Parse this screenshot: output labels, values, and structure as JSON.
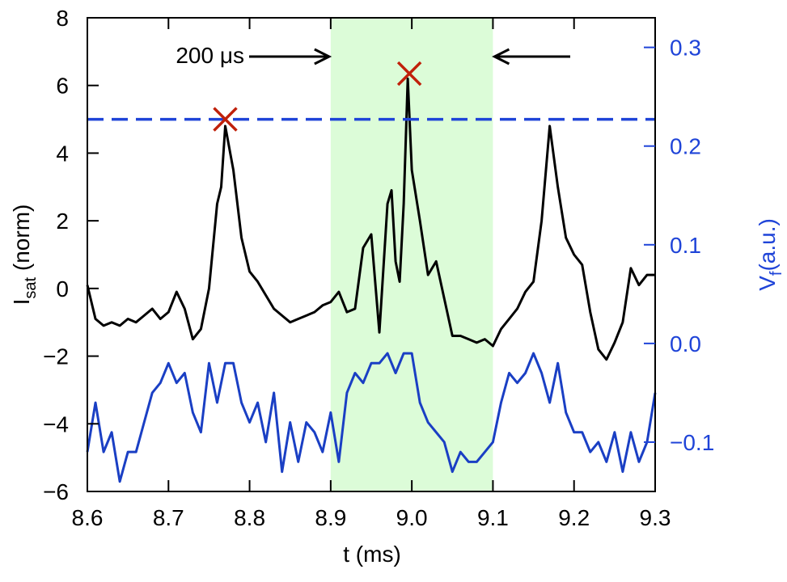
{
  "chart_data": {
    "type": "line",
    "xlabel": "t (ms)",
    "ylabel": [
      "I",
      "sat",
      " (norm)"
    ],
    "y2label": [
      "V",
      "f",
      "(a.u.)"
    ],
    "annotation": "200 μs",
    "xlim": [
      8.6,
      9.3
    ],
    "xticks": [
      8.6,
      8.7,
      8.8,
      8.9,
      {
        "value": 9.0,
        "label": "9.0"
      },
      9.1,
      9.2,
      9.3
    ],
    "ylim": [
      -6,
      8
    ],
    "yticks": [
      {
        "value": -6,
        "label": "−6"
      },
      {
        "value": -4,
        "label": "−4"
      },
      {
        "value": -2,
        "label": "−2"
      },
      0,
      2,
      4,
      6,
      8
    ],
    "y2lim": [
      -0.15,
      0.33
    ],
    "y2ticks": [
      {
        "value": -0.1,
        "label": "−0.1"
      },
      {
        "value": 0.0,
        "label": "0.0"
      },
      0.1,
      0.2,
      0.3
    ],
    "span": [
      8.9,
      9.1
    ],
    "span_color": "#dcfcd8",
    "threshold": 5,
    "threshold_color": "#1f44d8",
    "markers": {
      "x": [
        8.77,
        8.997
      ],
      "y": [
        5,
        6.35
      ],
      "color": "#c0200a"
    },
    "series": [
      {
        "color": "#000000",
        "x": [
          8.6,
          8.61,
          8.62,
          8.63,
          8.64,
          8.65,
          8.66,
          8.67,
          8.68,
          8.69,
          8.7,
          8.71,
          8.72,
          8.73,
          8.74,
          8.75,
          8.76,
          8.765,
          8.77,
          8.78,
          8.79,
          8.8,
          8.81,
          8.82,
          8.83,
          8.84,
          8.85,
          8.86,
          8.87,
          8.88,
          8.89,
          8.9,
          8.91,
          8.92,
          8.93,
          8.94,
          8.95,
          8.96,
          8.97,
          8.975,
          8.98,
          8.985,
          8.99,
          8.995,
          9.0,
          9.01,
          9.02,
          9.03,
          9.04,
          9.05,
          9.06,
          9.07,
          9.08,
          9.09,
          9.1,
          9.11,
          9.12,
          9.13,
          9.14,
          9.15,
          9.16,
          9.17,
          9.18,
          9.19,
          9.2,
          9.21,
          9.22,
          9.23,
          9.24,
          9.25,
          9.26,
          9.27,
          9.28,
          9.29,
          9.3
        ],
        "values": [
          0.1,
          -0.9,
          -1.1,
          -1.0,
          -1.1,
          -0.9,
          -1.0,
          -0.8,
          -0.6,
          -0.9,
          -0.7,
          -0.1,
          -0.6,
          -1.5,
          -1.2,
          0.0,
          2.5,
          3.0,
          4.8,
          3.5,
          1.5,
          0.5,
          0.2,
          -0.2,
          -0.6,
          -0.8,
          -1.0,
          -0.9,
          -0.8,
          -0.7,
          -0.5,
          -0.4,
          -0.1,
          -0.7,
          -0.6,
          1.2,
          1.6,
          -1.3,
          2.5,
          2.9,
          0.8,
          0.2,
          2.5,
          6.2,
          3.5,
          2.0,
          0.4,
          0.8,
          -0.3,
          -1.4,
          -1.4,
          -1.5,
          -1.6,
          -1.5,
          -1.7,
          -1.2,
          -0.9,
          -0.6,
          -0.1,
          0.2,
          2.0,
          4.8,
          3.0,
          1.5,
          1.0,
          0.7,
          -0.7,
          -1.8,
          -2.1,
          -1.6,
          -1.0,
          0.6,
          0.1,
          0.4,
          0.4
        ]
      },
      {
        "color": "#1a3fc4",
        "axis": "y2",
        "x": [
          8.6,
          8.61,
          8.62,
          8.63,
          8.64,
          8.65,
          8.66,
          8.67,
          8.68,
          8.69,
          8.7,
          8.71,
          8.72,
          8.73,
          8.74,
          8.75,
          8.76,
          8.77,
          8.78,
          8.79,
          8.8,
          8.81,
          8.82,
          8.83,
          8.84,
          8.85,
          8.86,
          8.87,
          8.88,
          8.89,
          8.9,
          8.91,
          8.92,
          8.93,
          8.94,
          8.95,
          8.96,
          8.97,
          8.98,
          8.99,
          9.0,
          9.01,
          9.02,
          9.03,
          9.04,
          9.05,
          9.06,
          9.07,
          9.08,
          9.09,
          9.1,
          9.11,
          9.12,
          9.13,
          9.14,
          9.15,
          9.16,
          9.17,
          9.18,
          9.19,
          9.2,
          9.21,
          9.22,
          9.23,
          9.24,
          9.25,
          9.26,
          9.27,
          9.28,
          9.29,
          9.3
        ],
        "values": [
          -0.11,
          -0.06,
          -0.11,
          -0.09,
          -0.14,
          -0.11,
          -0.11,
          -0.08,
          -0.05,
          -0.04,
          -0.02,
          -0.04,
          -0.03,
          -0.07,
          -0.09,
          -0.02,
          -0.06,
          -0.02,
          -0.02,
          -0.06,
          -0.08,
          -0.06,
          -0.1,
          -0.05,
          -0.13,
          -0.08,
          -0.12,
          -0.08,
          -0.09,
          -0.11,
          -0.07,
          -0.12,
          -0.05,
          -0.03,
          -0.04,
          -0.02,
          -0.02,
          -0.01,
          -0.03,
          -0.01,
          -0.01,
          -0.06,
          -0.08,
          -0.09,
          -0.1,
          -0.13,
          -0.11,
          -0.12,
          -0.12,
          -0.11,
          -0.1,
          -0.06,
          -0.03,
          -0.04,
          -0.03,
          -0.01,
          -0.03,
          -0.06,
          -0.02,
          -0.07,
          -0.09,
          -0.09,
          -0.11,
          -0.1,
          -0.12,
          -0.09,
          -0.13,
          -0.09,
          -0.12,
          -0.1,
          -0.05
        ]
      }
    ],
    "y2_color": "#1f44d8"
  }
}
